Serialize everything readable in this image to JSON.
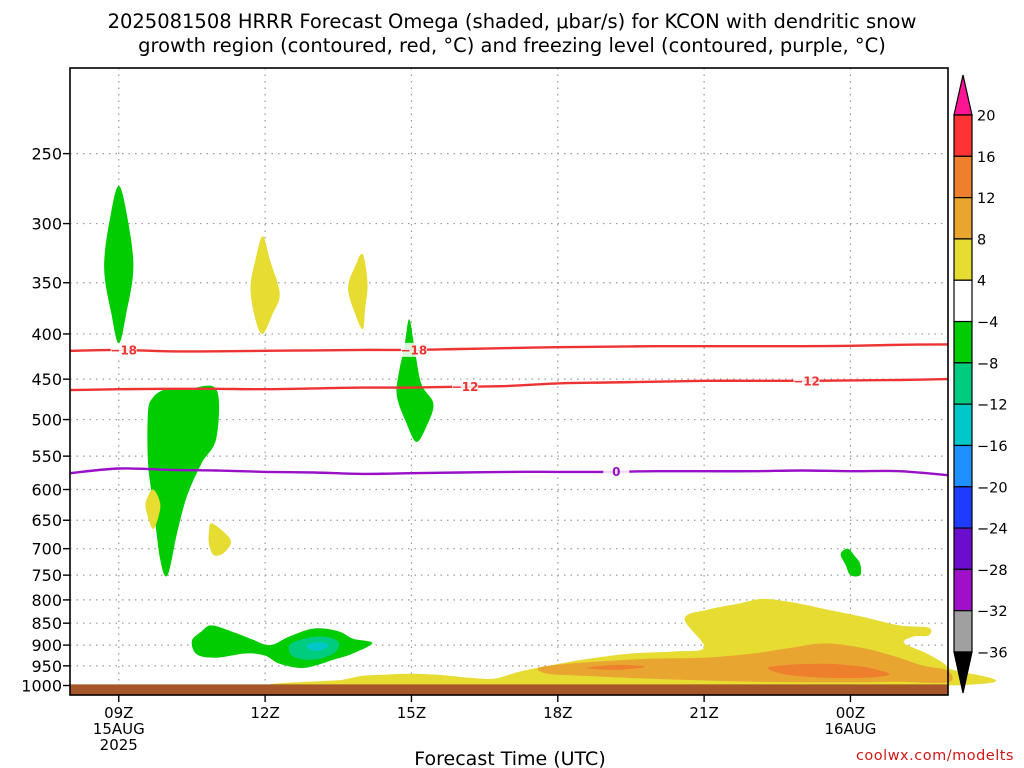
{
  "title": {
    "line1": "2025081508 HRRR Forecast Omega (shaded, μbar/s) for KCON with dendritic snow",
    "line2": "growth region (contoured, red, °C) and freezing level (contoured, purple, °C)"
  },
  "credit": "coolwx.com/modelts",
  "chart_data": {
    "type": "heatmap",
    "station": "KCON",
    "model": "HRRR",
    "init": "2025081508",
    "xlabel": "Forecast Time (UTC)",
    "ylabel": "",
    "x_ticks": [
      {
        "hour": 9,
        "lines": [
          "09Z",
          "15AUG",
          "2025"
        ]
      },
      {
        "hour": 12,
        "lines": [
          "12Z"
        ]
      },
      {
        "hour": 15,
        "lines": [
          "15Z"
        ]
      },
      {
        "hour": 18,
        "lines": [
          "18Z"
        ]
      },
      {
        "hour": 21,
        "lines": [
          "21Z"
        ]
      },
      {
        "hour": 24,
        "lines": [
          "00Z",
          "16AUG"
        ]
      }
    ],
    "xlim_hours": [
      8,
      26
    ],
    "y_ticks": [
      250,
      300,
      350,
      400,
      450,
      500,
      550,
      600,
      650,
      700,
      750,
      800,
      850,
      900,
      950,
      1000
    ],
    "ylim_hPa": [
      200,
      1025
    ],
    "y_scale": "log-pressure",
    "grid": true,
    "colorbar": {
      "labels": [
        "20",
        "16",
        "12",
        "8",
        "4",
        "−4",
        "−8",
        "−12",
        "−16",
        "−20",
        "−24",
        "−28",
        "−32",
        "−36"
      ],
      "bins": [
        {
          "color": "#ff1493",
          "from": 20,
          "to": 24
        },
        {
          "color": "#ff3333",
          "from": 16,
          "to": 20
        },
        {
          "color": "#ee7f2d",
          "from": 12,
          "to": 16
        },
        {
          "color": "#e8a630",
          "from": 8,
          "to": 12
        },
        {
          "color": "#e6dc32",
          "from": 4,
          "to": 8
        },
        {
          "color": "#ffffff",
          "from": -4,
          "to": 4
        },
        {
          "color": "#00cc00",
          "from": -8,
          "to": -4
        },
        {
          "color": "#00cc80",
          "from": -12,
          "to": -8
        },
        {
          "color": "#00c8c8",
          "from": -16,
          "to": -12
        },
        {
          "color": "#1e90ff",
          "from": -20,
          "to": -16
        },
        {
          "color": "#1e3cff",
          "from": -24,
          "to": -20
        },
        {
          "color": "#6a0dcc",
          "from": -28,
          "to": -24
        },
        {
          "color": "#a010c8",
          "from": -32,
          "to": -28
        },
        {
          "color": "#a0a0a0",
          "from": -36,
          "to": -32
        },
        {
          "color": "#000000",
          "from": -40,
          "to": -36
        }
      ]
    },
    "contours": [
      {
        "name": "-18",
        "color": "#ee3333",
        "label": "−18",
        "points": [
          [
            8,
            418
          ],
          [
            9,
            417
          ],
          [
            10,
            418.5
          ],
          [
            11,
            418.5
          ],
          [
            12,
            418
          ],
          [
            13,
            417.5
          ],
          [
            14,
            417
          ],
          [
            15,
            417
          ],
          [
            16,
            416
          ],
          [
            17,
            415
          ],
          [
            18,
            414
          ],
          [
            19,
            413.5
          ],
          [
            20,
            413
          ],
          [
            21,
            413
          ],
          [
            22,
            413
          ],
          [
            23,
            413
          ],
          [
            24,
            412.5
          ],
          [
            25,
            411.5
          ],
          [
            26,
            411
          ]
        ],
        "label_hours": [
          9.1,
          15.05
        ]
      },
      {
        "name": "-12",
        "color": "#ee3333",
        "label": "−12",
        "points": [
          [
            8,
            463
          ],
          [
            9,
            462
          ],
          [
            10,
            461.5
          ],
          [
            11,
            461.5
          ],
          [
            12,
            462
          ],
          [
            13,
            461
          ],
          [
            14,
            460
          ],
          [
            15,
            460
          ],
          [
            16,
            459
          ],
          [
            17,
            458
          ],
          [
            18,
            455
          ],
          [
            19,
            454
          ],
          [
            20,
            453
          ],
          [
            21,
            452
          ],
          [
            22,
            452
          ],
          [
            23,
            452
          ],
          [
            24,
            451.5
          ],
          [
            25,
            451
          ],
          [
            26,
            450
          ]
        ],
        "label_hours": [
          16.1,
          23.1
        ]
      },
      {
        "name": "0",
        "color": "#9a10c8",
        "label": "0",
        "points": [
          [
            8,
            575
          ],
          [
            9,
            568
          ],
          [
            10,
            570
          ],
          [
            11,
            571
          ],
          [
            12,
            573
          ],
          [
            13,
            574
          ],
          [
            14,
            576
          ],
          [
            15,
            575
          ],
          [
            16,
            574
          ],
          [
            17,
            573
          ],
          [
            18,
            573
          ],
          [
            19,
            573
          ],
          [
            20,
            572
          ],
          [
            21,
            572
          ],
          [
            22,
            572
          ],
          [
            23,
            571
          ],
          [
            24,
            572
          ],
          [
            25,
            572
          ],
          [
            26,
            578
          ]
        ],
        "label_hours": [
          19.2
        ]
      }
    ],
    "shaded_regions": [
      {
        "value": -6,
        "color": "#00cc00",
        "pts": [
          [
            8.7,
            335
          ],
          [
            8.85,
            290
          ],
          [
            9.0,
            272
          ],
          [
            9.15,
            290
          ],
          [
            9.3,
            335
          ],
          [
            9.15,
            380
          ],
          [
            9.0,
            410
          ],
          [
            8.85,
            380
          ]
        ]
      },
      {
        "value": -6,
        "color": "#00cc00",
        "pts": [
          [
            9.6,
            490
          ],
          [
            9.7,
            472
          ],
          [
            9.9,
            463
          ],
          [
            10.0,
            462
          ],
          [
            10.4,
            462
          ],
          [
            11.0,
            462
          ],
          [
            11.0,
            525
          ],
          [
            10.7,
            560
          ],
          [
            10.4,
            610
          ],
          [
            10.2,
            670
          ],
          [
            10.0,
            750
          ],
          [
            9.85,
            720
          ],
          [
            9.7,
            620
          ],
          [
            9.6,
            560
          ]
        ]
      },
      {
        "value": -6,
        "color": "#00cc00",
        "pts": [
          [
            14.7,
            470
          ],
          [
            14.75,
            440
          ],
          [
            14.85,
            415
          ],
          [
            14.95,
            385
          ],
          [
            15.05,
            410
          ],
          [
            15.2,
            455
          ],
          [
            15.45,
            480
          ],
          [
            15.3,
            510
          ],
          [
            15.1,
            530
          ],
          [
            14.9,
            505
          ]
        ]
      },
      {
        "value": 6,
        "color": "#e6dc32",
        "pts": [
          [
            9.7,
            600
          ],
          [
            9.85,
            622
          ],
          [
            9.8,
            648
          ],
          [
            9.7,
            665
          ],
          [
            9.6,
            645
          ],
          [
            9.55,
            622
          ]
        ]
      },
      {
        "value": 6,
        "color": "#e6dc32",
        "pts": [
          [
            10.9,
            655
          ],
          [
            11.15,
            670
          ],
          [
            11.3,
            688
          ],
          [
            11.15,
            708
          ],
          [
            10.95,
            712
          ],
          [
            10.85,
            692
          ],
          [
            10.85,
            668
          ]
        ]
      },
      {
        "value": 6,
        "color": "#e6dc32",
        "pts": [
          [
            11.7,
            355
          ],
          [
            11.8,
            330
          ],
          [
            11.95,
            310
          ],
          [
            12.1,
            330
          ],
          [
            12.3,
            360
          ],
          [
            12.15,
            380
          ],
          [
            11.95,
            400
          ],
          [
            11.8,
            385
          ]
        ]
      },
      {
        "value": 6,
        "color": "#e6dc32",
        "pts": [
          [
            13.7,
            355
          ],
          [
            13.85,
            335
          ],
          [
            14.0,
            325
          ],
          [
            14.1,
            350
          ],
          [
            14.05,
            375
          ],
          [
            14.0,
            395
          ],
          [
            13.85,
            380
          ]
        ]
      },
      {
        "value": -6,
        "color": "#00cc00",
        "pts": [
          [
            10.5,
            890
          ],
          [
            10.7,
            868
          ],
          [
            10.9,
            855
          ],
          [
            11.3,
            868
          ],
          [
            11.7,
            885
          ],
          [
            12.1,
            900
          ],
          [
            12.5,
            880
          ],
          [
            13.0,
            862
          ],
          [
            13.5,
            868
          ],
          [
            13.8,
            885
          ],
          [
            14.2,
            895
          ],
          [
            13.8,
            920
          ],
          [
            13.4,
            935
          ],
          [
            12.8,
            955
          ],
          [
            12.3,
            945
          ],
          [
            12.0,
            925
          ],
          [
            11.6,
            920
          ],
          [
            11.0,
            930
          ],
          [
            10.6,
            922
          ]
        ]
      },
      {
        "value": -10,
        "color": "#00cc80",
        "pts": [
          [
            12.5,
            900
          ],
          [
            12.8,
            885
          ],
          [
            13.2,
            880
          ],
          [
            13.5,
            892
          ],
          [
            13.45,
            915
          ],
          [
            13.2,
            930
          ],
          [
            12.85,
            935
          ],
          [
            12.55,
            925
          ]
        ]
      },
      {
        "value": -10,
        "color": "#00c8c8",
        "pts": [
          [
            12.85,
            900
          ],
          [
            13.1,
            893
          ],
          [
            13.3,
            900
          ],
          [
            13.15,
            912
          ],
          [
            12.95,
            912
          ]
        ]
      },
      {
        "value": -6,
        "color": "#00cc00",
        "pts": [
          [
            23.8,
            710
          ],
          [
            23.95,
            700
          ],
          [
            24.1,
            715
          ],
          [
            24.2,
            728
          ],
          [
            24.2,
            750
          ],
          [
            24.0,
            750
          ],
          [
            23.9,
            730
          ]
        ]
      },
      {
        "value": 6,
        "color": "#e6dc32",
        "pts": [
          [
            12.9,
            1000
          ],
          [
            13.6,
            985
          ],
          [
            14.0,
            975
          ],
          [
            14.5,
            972
          ],
          [
            15.0,
            970
          ],
          [
            15.6,
            973
          ],
          [
            16.2,
            980
          ],
          [
            16.7,
            982
          ],
          [
            17.2,
            965
          ],
          [
            17.8,
            950
          ],
          [
            18.5,
            935
          ],
          [
            19.5,
            920
          ],
          [
            20.4,
            915
          ],
          [
            21.0,
            905
          ],
          [
            20.6,
            840
          ],
          [
            21.1,
            820
          ],
          [
            21.7,
            808
          ],
          [
            22.2,
            798
          ],
          [
            22.8,
            805
          ],
          [
            23.5,
            820
          ],
          [
            24.2,
            835
          ],
          [
            25.0,
            855
          ],
          [
            25.6,
            860
          ],
          [
            25.6,
            878
          ],
          [
            25.3,
            880
          ],
          [
            25.1,
            895
          ],
          [
            25.6,
            922
          ],
          [
            26,
            955
          ],
          [
            26,
            1000
          ]
        ]
      },
      {
        "value": 10,
        "color": "#e8a630",
        "pts": [
          [
            17.6,
            955
          ],
          [
            18.2,
            945
          ],
          [
            19.0,
            938
          ],
          [
            20.0,
            932
          ],
          [
            21.0,
            930
          ],
          [
            22.0,
            920
          ],
          [
            22.8,
            906
          ],
          [
            23.5,
            896
          ],
          [
            24.3,
            908
          ],
          [
            25.0,
            930
          ],
          [
            25.5,
            950
          ],
          [
            26,
            962
          ],
          [
            26,
            992
          ],
          [
            25.0,
            990
          ],
          [
            24.0,
            992
          ],
          [
            22.0,
            990
          ],
          [
            20.0,
            983
          ],
          [
            18.5,
            975
          ],
          [
            17.8,
            970
          ]
        ]
      },
      {
        "value": 14,
        "color": "#ee7f2d",
        "pts": [
          [
            22.3,
            955
          ],
          [
            22.8,
            947
          ],
          [
            23.5,
            945
          ],
          [
            24.1,
            950
          ],
          [
            24.5,
            958
          ],
          [
            24.8,
            972
          ],
          [
            24.3,
            980
          ],
          [
            23.5,
            980
          ],
          [
            22.7,
            972
          ]
        ]
      },
      {
        "value": 14,
        "color": "#ee7f2d",
        "pts": [
          [
            18.6,
            955
          ],
          [
            19.2,
            948
          ],
          [
            19.8,
            952
          ],
          [
            19.2,
            960
          ]
        ]
      }
    ],
    "terrain": {
      "color": "#a65628",
      "top_hPa": 997
    }
  }
}
